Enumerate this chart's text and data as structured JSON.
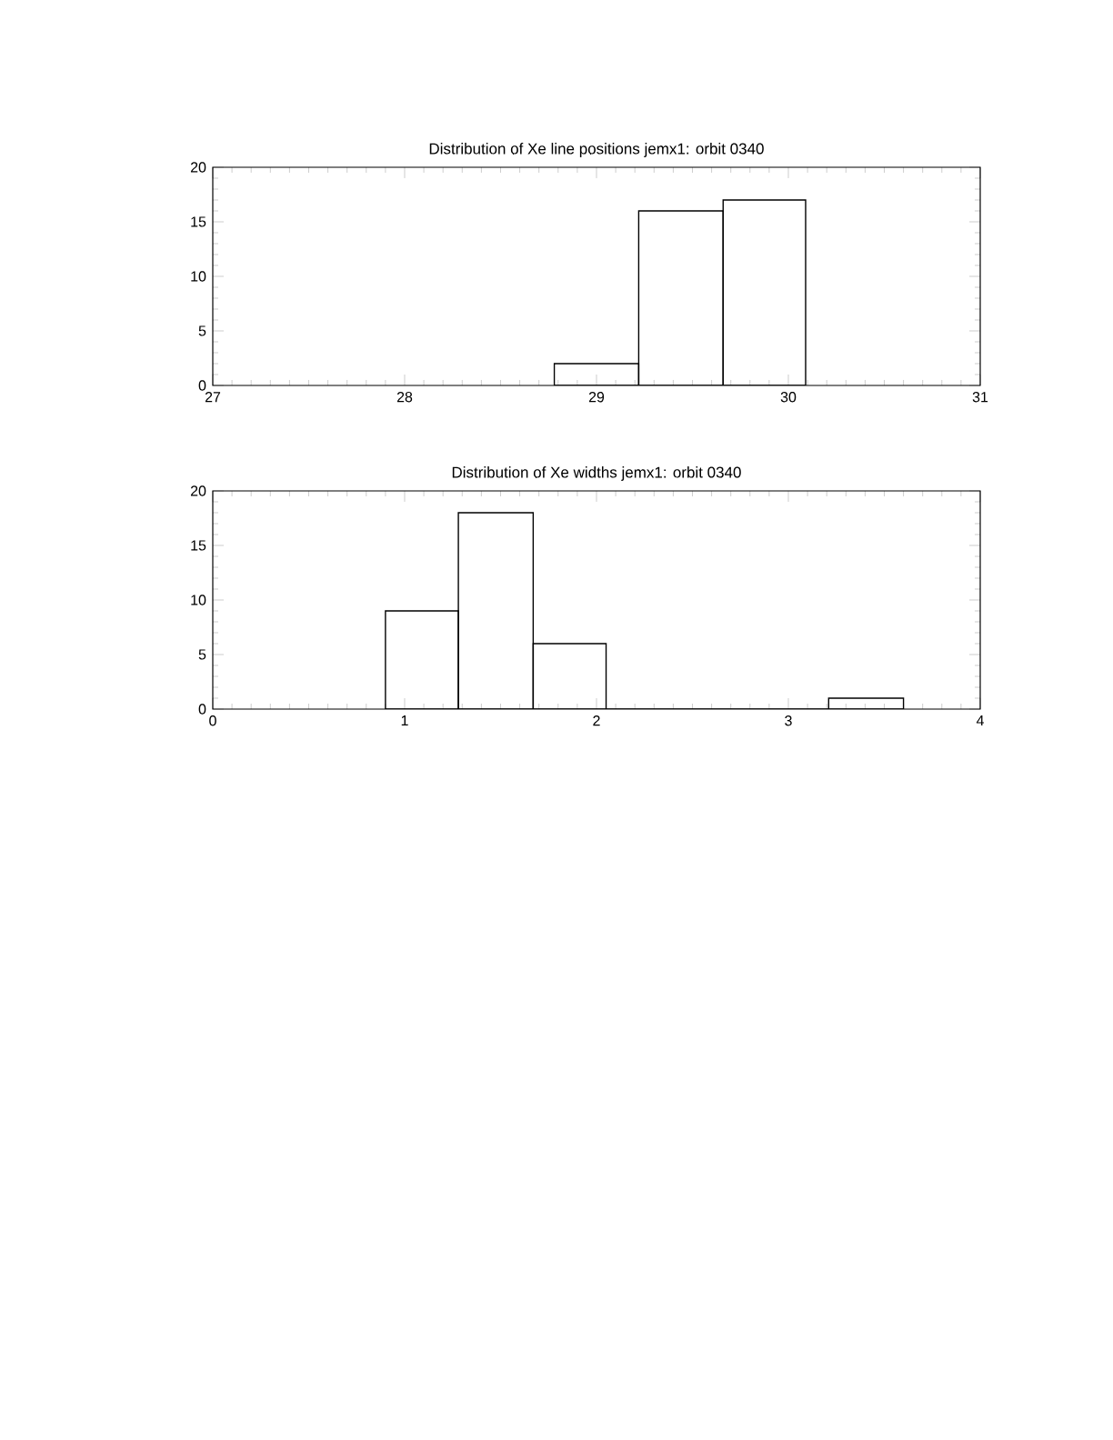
{
  "chart_data": [
    {
      "type": "histogram",
      "title": "Distribution of Xe line positions jemx1: orbit 0340",
      "bins": [
        28.78,
        29.22,
        29.66,
        30.09
      ],
      "values": [
        2,
        16,
        17
      ],
      "color": "#000000",
      "xlim": [
        27,
        31
      ],
      "ylim": [
        0,
        20
      ],
      "xticks": [
        27,
        28,
        29,
        30,
        31
      ],
      "yticks": [
        0,
        5,
        10,
        15,
        20
      ]
    },
    {
      "type": "histogram",
      "title": "Distribution of Xe widths jemx1: orbit 0340",
      "bins": [
        0.9,
        1.28,
        1.67,
        2.05,
        3.21,
        3.6
      ],
      "values": [
        9,
        18,
        6,
        0,
        1
      ],
      "color": "#000000",
      "xlim": [
        0,
        4
      ],
      "ylim": [
        0,
        20
      ],
      "xticks": [
        0,
        1,
        2,
        3,
        4
      ],
      "yticks": [
        0,
        5,
        10,
        15,
        20
      ]
    }
  ]
}
